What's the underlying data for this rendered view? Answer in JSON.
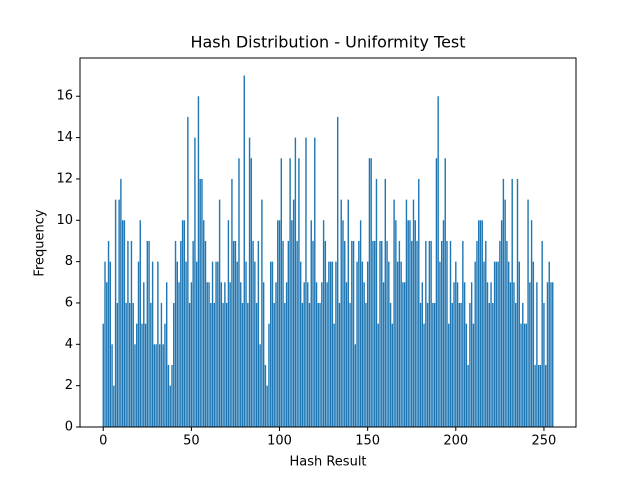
{
  "chart_data": {
    "type": "bar",
    "title": "Hash Distribution - Uniformity Test",
    "x_label": "Hash Result",
    "y_label": "Frequency",
    "color": "#1f77b4",
    "x": [
      0,
      1,
      2,
      3,
      4,
      5,
      6,
      7,
      8,
      9,
      10,
      11,
      12,
      13,
      14,
      15,
      16,
      17,
      18,
      19,
      20,
      21,
      22,
      23,
      24,
      25,
      26,
      27,
      28,
      29,
      30,
      31,
      32,
      33,
      34,
      35,
      36,
      37,
      38,
      39,
      40,
      41,
      42,
      43,
      44,
      45,
      46,
      47,
      48,
      49,
      50,
      51,
      52,
      53,
      54,
      55,
      56,
      57,
      58,
      59,
      60,
      61,
      62,
      63,
      64,
      65,
      66,
      67,
      68,
      69,
      70,
      71,
      72,
      73,
      74,
      75,
      76,
      77,
      78,
      79,
      80,
      81,
      82,
      83,
      84,
      85,
      86,
      87,
      88,
      89,
      90,
      91,
      92,
      93,
      94,
      95,
      96,
      97,
      98,
      99,
      100,
      101,
      102,
      103,
      104,
      105,
      106,
      107,
      108,
      109,
      110,
      111,
      112,
      113,
      114,
      115,
      116,
      117,
      118,
      119,
      120,
      121,
      122,
      123,
      124,
      125,
      126,
      127,
      128,
      129,
      130,
      131,
      132,
      133,
      134,
      135,
      136,
      137,
      138,
      139,
      140,
      141,
      142,
      143,
      144,
      145,
      146,
      147,
      148,
      149,
      150,
      151,
      152,
      153,
      154,
      155,
      156,
      157,
      158,
      159,
      160,
      161,
      162,
      163,
      164,
      165,
      166,
      167,
      168,
      169,
      170,
      171,
      172,
      173,
      174,
      175,
      176,
      177,
      178,
      179,
      180,
      181,
      182,
      183,
      184,
      185,
      186,
      187,
      188,
      189,
      190,
      191,
      192,
      193,
      194,
      195,
      196,
      197,
      198,
      199,
      200,
      201,
      202,
      203,
      204,
      205,
      206,
      207,
      208,
      209,
      210,
      211,
      212,
      213,
      214,
      215,
      216,
      217,
      218,
      219,
      220,
      221,
      222,
      223,
      224,
      225,
      226,
      227,
      228,
      229,
      230,
      231,
      232,
      233,
      234,
      235,
      236,
      237,
      238,
      239,
      240,
      241,
      242,
      243,
      244,
      245,
      246,
      247,
      248,
      249,
      250,
      251,
      252,
      253,
      254,
      255
    ],
    "values": [
      5,
      8,
      7,
      9,
      8,
      4,
      2,
      11,
      6,
      11,
      12,
      10,
      10,
      6,
      9,
      6,
      9,
      6,
      4,
      5,
      8,
      10,
      5,
      7,
      5,
      9,
      9,
      6,
      8,
      4,
      4,
      8,
      4,
      6,
      4,
      5,
      7,
      3,
      2,
      3,
      6,
      9,
      8,
      7,
      9,
      10,
      10,
      8,
      15,
      6,
      7,
      9,
      14,
      8,
      16,
      12,
      12,
      10,
      9,
      7,
      7,
      6,
      8,
      6,
      8,
      8,
      11,
      7,
      6,
      7,
      6,
      10,
      7,
      12,
      9,
      9,
      8,
      13,
      7,
      6,
      17,
      8,
      6,
      14,
      13,
      9,
      8,
      6,
      9,
      4,
      11,
      7,
      3,
      2,
      5,
      8,
      8,
      6,
      7,
      10,
      10,
      13,
      9,
      6,
      7,
      9,
      13,
      10,
      11,
      14,
      9,
      13,
      8,
      6,
      7,
      14,
      7,
      6,
      10,
      9,
      14,
      7,
      6,
      6,
      7,
      10,
      9,
      7,
      8,
      8,
      8,
      5,
      8,
      15,
      6,
      11,
      10,
      9,
      7,
      11,
      6,
      9,
      9,
      4,
      8,
      9,
      10,
      8,
      7,
      6,
      8,
      13,
      13,
      9,
      9,
      12,
      5,
      9,
      9,
      7,
      12,
      9,
      8,
      6,
      5,
      11,
      10,
      8,
      9,
      8,
      7,
      7,
      11,
      10,
      10,
      9,
      11,
      10,
      9,
      12,
      6,
      7,
      5,
      9,
      6,
      9,
      9,
      6,
      6,
      13,
      16,
      8,
      9,
      10,
      13,
      9,
      5,
      9,
      6,
      7,
      8,
      7,
      6,
      6,
      9,
      7,
      5,
      3,
      6,
      7,
      5,
      8,
      9,
      10,
      10,
      10,
      8,
      9,
      7,
      6,
      7,
      6,
      8,
      8,
      8,
      9,
      10,
      12,
      11,
      9,
      8,
      7,
      12,
      7,
      6,
      12,
      8,
      5,
      6,
      5,
      5,
      11,
      7,
      10,
      8,
      3,
      7,
      3,
      3,
      9,
      6,
      3,
      7,
      8,
      7,
      7
    ],
    "xlim": [
      -13.19,
      268.19
    ],
    "xticks": [
      0,
      50,
      100,
      150,
      200,
      250
    ],
    "ylim": [
      0,
      17.85
    ],
    "yticks": [
      0,
      2,
      4,
      6,
      8,
      10,
      12,
      14,
      16
    ]
  }
}
